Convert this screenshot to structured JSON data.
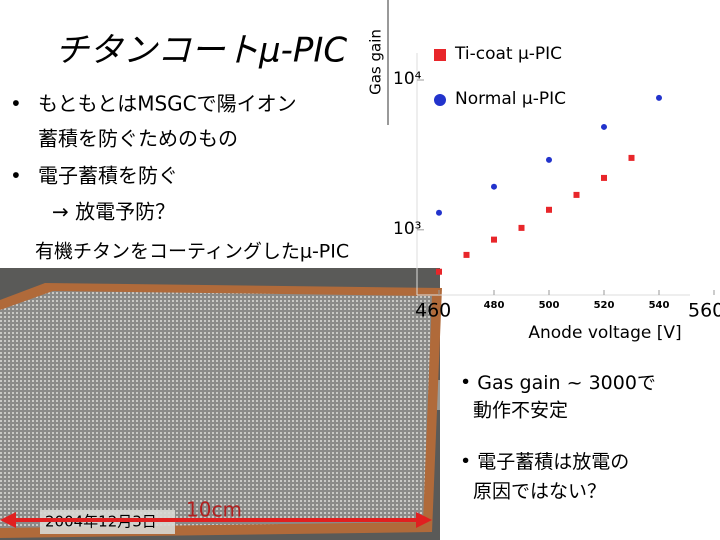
{
  "slide": {
    "title": "チタンコートμ-PIC",
    "bullets": [
      [
        "もともとはMSGCで陽イオン",
        "蓄積を防ぐためのもの"
      ],
      [
        "電子蓄積を防ぐ",
        "→ 放電予防？"
      ]
    ],
    "caption": "有機チタンをコーティングしたμ-PIC",
    "photo_date": "2004年12月3日",
    "photo_scale": "10cm",
    "notes": [
      [
        "Gas gain ~ 3000で",
        "動作不安定"
      ],
      [
        "電子蓄積は放電の",
        "原因ではない？"
      ]
    ]
  },
  "chart_data": {
    "type": "scatter",
    "ylabel": "Gas gain",
    "xlabel": "Anode voltage [V]",
    "log_y": true,
    "xlim": [
      460,
      560
    ],
    "xticks": [
      460,
      480,
      500,
      520,
      540,
      560
    ],
    "ylim": [
      340,
      28000
    ],
    "yticks": [
      {
        "value": 1000,
        "label": "10³"
      },
      {
        "value": 10000,
        "label": "10⁴"
      }
    ],
    "series": [
      {
        "name": "Ti-coat μ-PIC",
        "color": "#e8262a",
        "marker": "square",
        "x": [
          460,
          470,
          480,
          490,
          500,
          510,
          520,
          530
        ],
        "values": [
          525,
          680,
          860,
          1030,
          1360,
          1710,
          2220,
          3020
        ]
      },
      {
        "name": "Normal μ-PIC",
        "color": "#2233cc",
        "marker": "circle",
        "x": [
          460,
          480,
          500,
          520,
          540
        ],
        "values": [
          1300,
          1940,
          2930,
          4860,
          7590
        ]
      }
    ]
  }
}
